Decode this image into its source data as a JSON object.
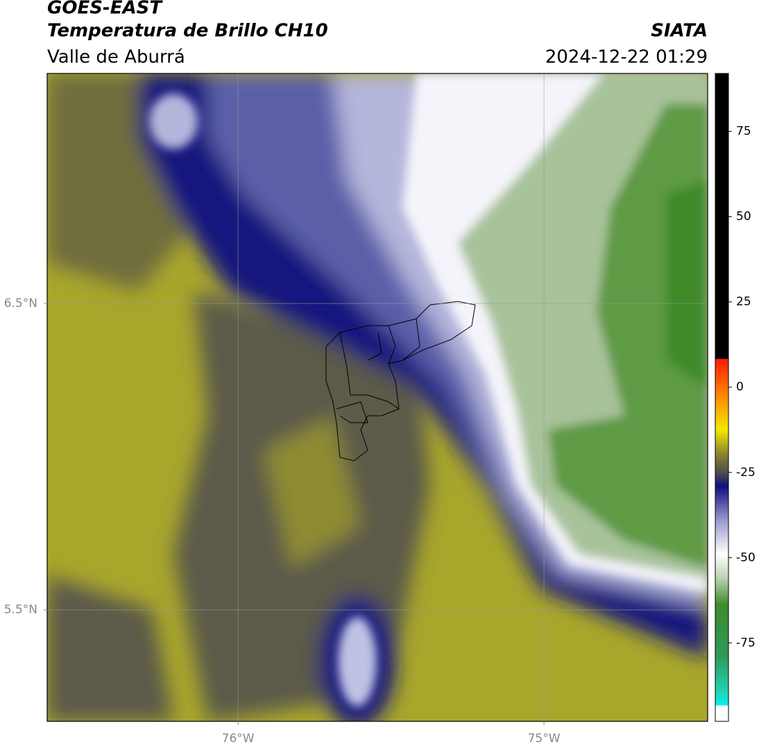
{
  "header": {
    "title": "GOES-EAST",
    "subtitle": "Temperatura de Brillo CH10",
    "region": "Valle de Aburrá",
    "source": "SIATA",
    "datetime": "2024-12-22 01:29"
  },
  "map": {
    "xlim": [
      -76.624,
      -74.465
    ],
    "ylim": [
      5.136,
      7.251
    ],
    "xticks": [
      {
        "value": -76,
        "label": "76°W"
      },
      {
        "value": -75,
        "label": "75°W"
      }
    ],
    "yticks": [
      {
        "value": 5.5,
        "label": "5.5°N"
      },
      {
        "value": 6.5,
        "label": "6.5°N"
      }
    ],
    "grid": true
  },
  "colorbar": {
    "lim": [
      -98,
      92
    ],
    "ticks": [
      -75,
      -50,
      -25,
      0,
      25,
      50,
      75
    ]
  }
}
